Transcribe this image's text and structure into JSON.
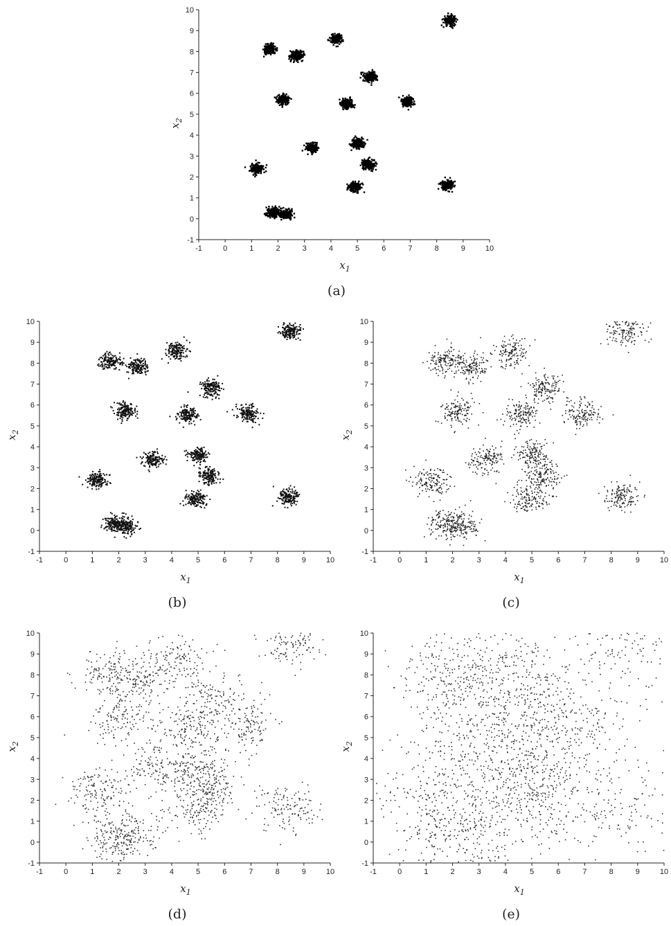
{
  "chart_data": [
    {
      "type": "scatter",
      "caption": "(a)",
      "xlabel": "x",
      "xlabel_sub": "1",
      "ylabel": "x",
      "ylabel_sub": "2",
      "xlim": [
        -1,
        10
      ],
      "ylim": [
        -1,
        10
      ],
      "xticks": [
        -1,
        0,
        1,
        2,
        3,
        4,
        5,
        6,
        7,
        8,
        9,
        10
      ],
      "yticks": [
        -1,
        0,
        1,
        2,
        3,
        4,
        5,
        6,
        7,
        8,
        9,
        10
      ],
      "grid": false,
      "cluster_spread": 0.12,
      "points_per_cluster": 170,
      "cluster_centers": [
        [
          8.5,
          9.5
        ],
        [
          1.7,
          8.1
        ],
        [
          2.7,
          7.8
        ],
        [
          4.2,
          8.6
        ],
        [
          5.5,
          6.8
        ],
        [
          2.2,
          5.7
        ],
        [
          4.6,
          5.5
        ],
        [
          6.9,
          5.6
        ],
        [
          3.3,
          3.4
        ],
        [
          5.0,
          3.6
        ],
        [
          5.4,
          2.6
        ],
        [
          1.2,
          2.4
        ],
        [
          4.9,
          1.5
        ],
        [
          8.4,
          1.6
        ],
        [
          1.8,
          0.3
        ],
        [
          2.3,
          0.2
        ]
      ],
      "point_color": "#000000"
    },
    {
      "type": "scatter",
      "caption": "(b)",
      "xlabel": "x",
      "xlabel_sub": "1",
      "ylabel": "x",
      "ylabel_sub": "2",
      "xlim": [
        -1,
        10
      ],
      "ylim": [
        -1,
        10
      ],
      "xticks": [
        -1,
        0,
        1,
        2,
        3,
        4,
        5,
        6,
        7,
        8,
        9,
        10
      ],
      "yticks": [
        -1,
        0,
        1,
        2,
        3,
        4,
        5,
        6,
        7,
        8,
        9,
        10
      ],
      "grid": false,
      "cluster_spread": 0.2,
      "points_per_cluster": 150,
      "cluster_centers": [
        [
          8.5,
          9.5
        ],
        [
          1.7,
          8.1
        ],
        [
          2.7,
          7.8
        ],
        [
          4.2,
          8.6
        ],
        [
          5.5,
          6.8
        ],
        [
          2.2,
          5.7
        ],
        [
          4.6,
          5.5
        ],
        [
          6.9,
          5.6
        ],
        [
          3.3,
          3.4
        ],
        [
          5.0,
          3.6
        ],
        [
          5.4,
          2.6
        ],
        [
          1.2,
          2.4
        ],
        [
          4.9,
          1.5
        ],
        [
          8.4,
          1.6
        ],
        [
          1.8,
          0.3
        ],
        [
          2.3,
          0.2
        ]
      ],
      "point_color": "#111111"
    },
    {
      "type": "scatter",
      "caption": "(c)",
      "xlabel": "x",
      "xlabel_sub": "1",
      "ylabel": "x",
      "ylabel_sub": "2",
      "xlim": [
        -1,
        10
      ],
      "ylim": [
        -1,
        10
      ],
      "xticks": [
        -1,
        0,
        1,
        2,
        3,
        4,
        5,
        6,
        7,
        8,
        9,
        10
      ],
      "yticks": [
        -1,
        0,
        1,
        2,
        3,
        4,
        5,
        6,
        7,
        8,
        9,
        10
      ],
      "grid": false,
      "cluster_spread": 0.35,
      "points_per_cluster": 140,
      "cluster_centers": [
        [
          8.5,
          9.5
        ],
        [
          1.7,
          8.1
        ],
        [
          2.7,
          7.8
        ],
        [
          4.2,
          8.6
        ],
        [
          5.5,
          6.8
        ],
        [
          2.2,
          5.7
        ],
        [
          4.6,
          5.5
        ],
        [
          6.9,
          5.6
        ],
        [
          3.3,
          3.4
        ],
        [
          5.0,
          3.6
        ],
        [
          5.4,
          2.6
        ],
        [
          1.2,
          2.4
        ],
        [
          4.9,
          1.5
        ],
        [
          8.4,
          1.6
        ],
        [
          1.8,
          0.3
        ],
        [
          2.3,
          0.2
        ]
      ],
      "point_color": "#222222"
    },
    {
      "type": "scatter",
      "caption": "(d)",
      "xlabel": "x",
      "xlabel_sub": "1",
      "ylabel": "x",
      "ylabel_sub": "2",
      "xlim": [
        -1,
        10
      ],
      "ylim": [
        -1,
        10
      ],
      "xticks": [
        -1,
        0,
        1,
        2,
        3,
        4,
        5,
        6,
        7,
        8,
        9,
        10
      ],
      "yticks": [
        -1,
        0,
        1,
        2,
        3,
        4,
        5,
        6,
        7,
        8,
        9,
        10
      ],
      "grid": false,
      "cluster_spread": 0.6,
      "points_per_cluster": 130,
      "cluster_centers": [
        [
          8.5,
          9.5
        ],
        [
          1.7,
          8.1
        ],
        [
          2.7,
          7.8
        ],
        [
          4.2,
          8.6
        ],
        [
          5.5,
          6.8
        ],
        [
          2.2,
          5.7
        ],
        [
          4.6,
          5.5
        ],
        [
          6.9,
          5.6
        ],
        [
          3.3,
          3.4
        ],
        [
          5.0,
          3.6
        ],
        [
          5.4,
          2.6
        ],
        [
          1.2,
          2.4
        ],
        [
          4.9,
          1.5
        ],
        [
          8.4,
          1.6
        ],
        [
          1.8,
          0.3
        ],
        [
          2.3,
          0.2
        ]
      ],
      "point_color": "#333333"
    },
    {
      "type": "scatter",
      "caption": "(e)",
      "xlabel": "x",
      "xlabel_sub": "1",
      "ylabel": "x",
      "ylabel_sub": "2",
      "xlim": [
        -1,
        10
      ],
      "ylim": [
        -1,
        10
      ],
      "xticks": [
        -1,
        0,
        1,
        2,
        3,
        4,
        5,
        6,
        7,
        8,
        9,
        10
      ],
      "yticks": [
        -1,
        0,
        1,
        2,
        3,
        4,
        5,
        6,
        7,
        8,
        9,
        10
      ],
      "grid": false,
      "cluster_spread": 1.05,
      "points_per_cluster": 130,
      "cluster_centers": [
        [
          8.5,
          9.5
        ],
        [
          1.7,
          8.1
        ],
        [
          2.7,
          7.8
        ],
        [
          4.2,
          8.6
        ],
        [
          5.5,
          6.8
        ],
        [
          2.2,
          5.7
        ],
        [
          4.6,
          5.5
        ],
        [
          6.9,
          5.6
        ],
        [
          3.3,
          3.4
        ],
        [
          5.0,
          3.6
        ],
        [
          5.4,
          2.6
        ],
        [
          1.2,
          2.4
        ],
        [
          4.9,
          1.5
        ],
        [
          8.4,
          1.6
        ],
        [
          1.8,
          0.3
        ],
        [
          2.3,
          0.2
        ]
      ],
      "point_color": "#333333"
    }
  ]
}
